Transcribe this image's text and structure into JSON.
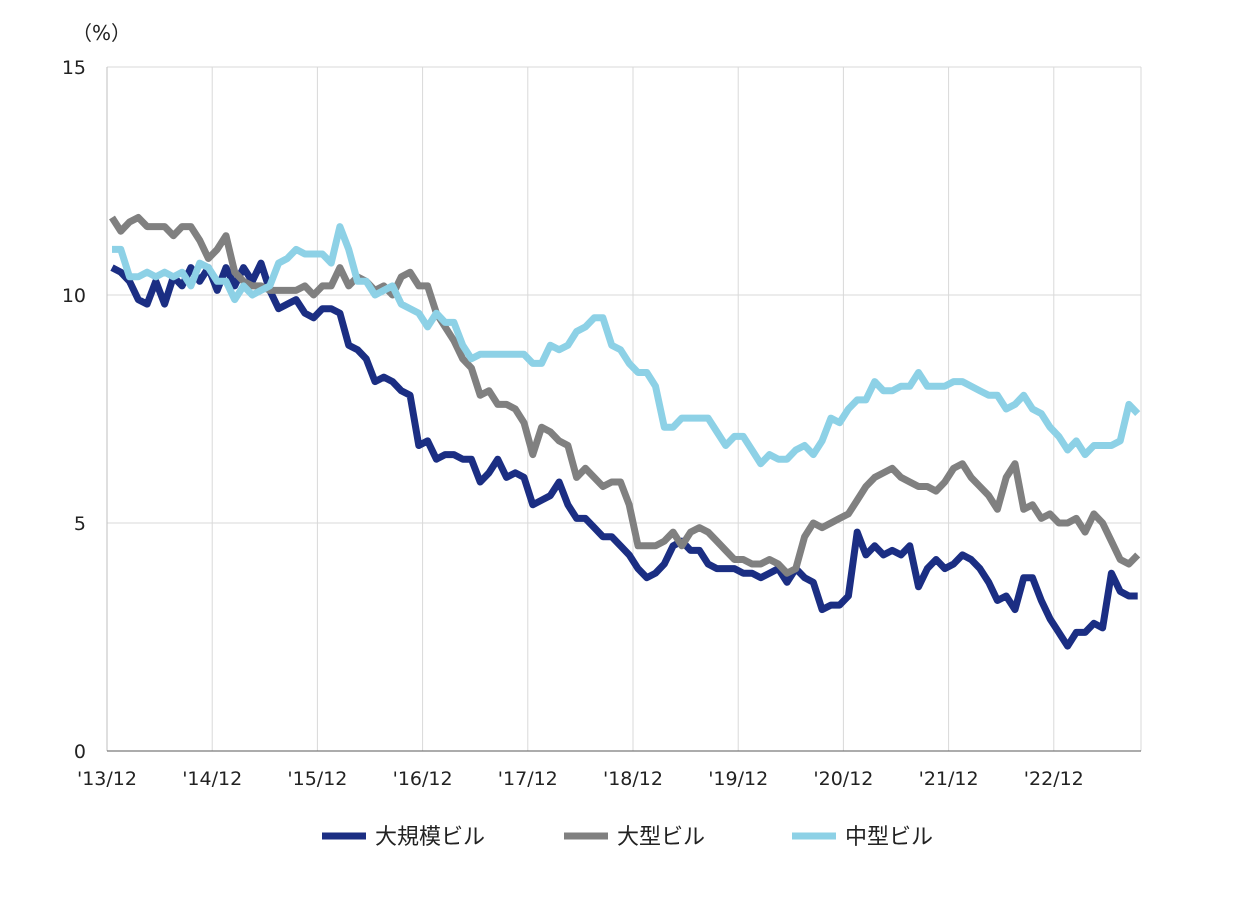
{
  "chart_data": {
    "type": "line",
    "y_unit_label": "（%）",
    "ylim": [
      0,
      15
    ],
    "yticks": [
      0,
      5,
      10,
      15
    ],
    "x_tick_labels": [
      "'13/12",
      "'14/12",
      "'15/12",
      "'16/12",
      "'17/12",
      "'18/12",
      "'19/12",
      "'20/12",
      "'21/12",
      "'22/12"
    ],
    "grid": "vertical and horizontal light gridlines",
    "legend_position": "bottom",
    "x_start": "2013-12",
    "x_step": "1 month",
    "series": [
      {
        "name": "大規模ビル",
        "color": "#1b2e83",
        "values": [
          10.6,
          10.5,
          10.3,
          9.9,
          9.8,
          10.3,
          9.8,
          10.4,
          10.2,
          10.6,
          10.3,
          10.6,
          10.1,
          10.6,
          10.2,
          10.6,
          10.3,
          10.7,
          10.1,
          9.7,
          9.8,
          9.9,
          9.6,
          9.5,
          9.7,
          9.7,
          9.6,
          8.9,
          8.8,
          8.6,
          8.1,
          8.2,
          8.1,
          7.9,
          7.8,
          6.7,
          6.8,
          6.4,
          6.5,
          6.5,
          6.4,
          6.4,
          5.9,
          6.1,
          6.4,
          6.0,
          6.1,
          6.0,
          5.4,
          5.5,
          5.6,
          5.9,
          5.4,
          5.1,
          5.1,
          4.9,
          4.7,
          4.7,
          4.5,
          4.3,
          4.0,
          3.8,
          3.9,
          4.1,
          4.5,
          4.6,
          4.4,
          4.4,
          4.1,
          4.0,
          4.0,
          4.0,
          3.9,
          3.9,
          3.8,
          3.9,
          4.0,
          3.7,
          4.0,
          3.8,
          3.7,
          3.1,
          3.2,
          3.2,
          3.4,
          4.8,
          4.3,
          4.5,
          4.3,
          4.4,
          4.3,
          4.5,
          3.6,
          4.0,
          4.2,
          4.0,
          4.1,
          4.3,
          4.2,
          4.0,
          3.7,
          3.3,
          3.4,
          3.1,
          3.8,
          3.8,
          3.3,
          2.9,
          2.6,
          2.3,
          2.6,
          2.6,
          2.8,
          2.7,
          3.9,
          3.5,
          3.4,
          3.4
        ]
      },
      {
        "name": "大型ビル",
        "color": "#808080",
        "values": [
          11.7,
          11.4,
          11.6,
          11.7,
          11.5,
          11.5,
          11.5,
          11.3,
          11.5,
          11.5,
          11.2,
          10.8,
          11.0,
          11.3,
          10.5,
          10.3,
          10.2,
          10.2,
          10.1,
          10.1,
          10.1,
          10.1,
          10.2,
          10.0,
          10.2,
          10.2,
          10.6,
          10.2,
          10.4,
          10.3,
          10.1,
          10.2,
          10.0,
          10.4,
          10.5,
          10.2,
          10.2,
          9.6,
          9.3,
          9.0,
          8.6,
          8.4,
          7.8,
          7.9,
          7.6,
          7.6,
          7.5,
          7.2,
          6.5,
          7.1,
          7.0,
          6.8,
          6.7,
          6.0,
          6.2,
          6.0,
          5.8,
          5.9,
          5.9,
          5.4,
          4.5,
          4.5,
          4.5,
          4.6,
          4.8,
          4.5,
          4.8,
          4.9,
          4.8,
          4.6,
          4.4,
          4.2,
          4.2,
          4.1,
          4.1,
          4.2,
          4.1,
          3.9,
          4.0,
          4.7,
          5.0,
          4.9,
          5.0,
          5.1,
          5.2,
          5.5,
          5.8,
          6.0,
          6.1,
          6.2,
          6.0,
          5.9,
          5.8,
          5.8,
          5.7,
          5.9,
          6.2,
          6.3,
          6.0,
          5.8,
          5.6,
          5.3,
          6.0,
          6.3,
          5.3,
          5.4,
          5.1,
          5.2,
          5.0,
          5.0,
          5.1,
          4.8,
          5.2,
          5.0,
          4.6,
          4.2,
          4.1,
          4.3
        ]
      },
      {
        "name": "中型ビル",
        "color": "#8dd1e6",
        "values": [
          11.0,
          11.0,
          10.4,
          10.4,
          10.5,
          10.4,
          10.5,
          10.4,
          10.5,
          10.2,
          10.7,
          10.6,
          10.3,
          10.3,
          9.9,
          10.2,
          10.0,
          10.1,
          10.2,
          10.7,
          10.8,
          11.0,
          10.9,
          10.9,
          10.9,
          10.7,
          11.5,
          11.0,
          10.3,
          10.3,
          10.0,
          10.1,
          10.2,
          9.8,
          9.7,
          9.6,
          9.3,
          9.6,
          9.4,
          9.4,
          8.9,
          8.6,
          8.7,
          8.7,
          8.7,
          8.7,
          8.7,
          8.7,
          8.5,
          8.5,
          8.9,
          8.8,
          8.9,
          9.2,
          9.3,
          9.5,
          9.5,
          8.9,
          8.8,
          8.5,
          8.3,
          8.3,
          8.0,
          7.1,
          7.1,
          7.3,
          7.3,
          7.3,
          7.3,
          7.0,
          6.7,
          6.9,
          6.9,
          6.6,
          6.3,
          6.5,
          6.4,
          6.4,
          6.6,
          6.7,
          6.5,
          6.8,
          7.3,
          7.2,
          7.5,
          7.7,
          7.7,
          8.1,
          7.9,
          7.9,
          8.0,
          8.0,
          8.3,
          8.0,
          8.0,
          8.0,
          8.1,
          8.1,
          8.0,
          7.9,
          7.8,
          7.8,
          7.5,
          7.6,
          7.8,
          7.5,
          7.4,
          7.1,
          6.9,
          6.6,
          6.8,
          6.5,
          6.7,
          6.7,
          6.7,
          6.8,
          7.6,
          7.4
        ]
      }
    ]
  }
}
